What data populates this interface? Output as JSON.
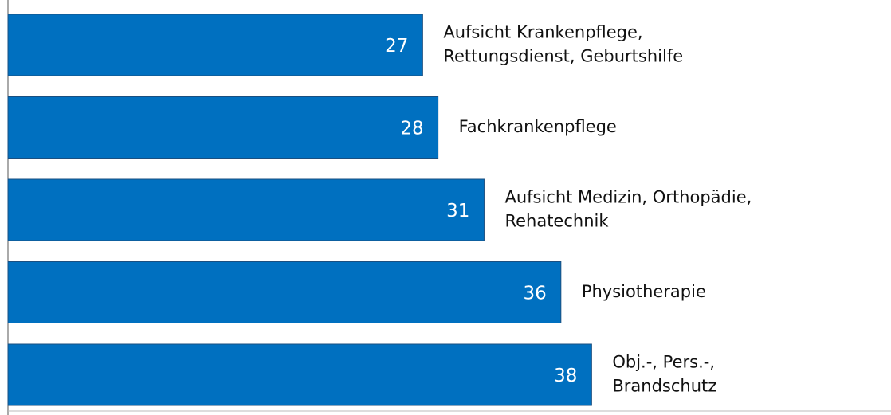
{
  "chart_data": {
    "type": "barh",
    "categories": [
      [
        "Aufsicht Krankenpflege,",
        "Rettungsdienst, Geburtshilfe"
      ],
      [
        "Fachkrankenpflege"
      ],
      [
        "Aufsicht Medizin, Orthopädie,",
        "Rehatechnik"
      ],
      [
        "Physiotherapie"
      ],
      [
        "Obj.-, Pers.-,",
        "Brandschutz"
      ]
    ],
    "values": [
      27,
      28,
      31,
      36,
      38
    ],
    "color": "#0070c0",
    "xlim": [
      0,
      55
    ]
  }
}
